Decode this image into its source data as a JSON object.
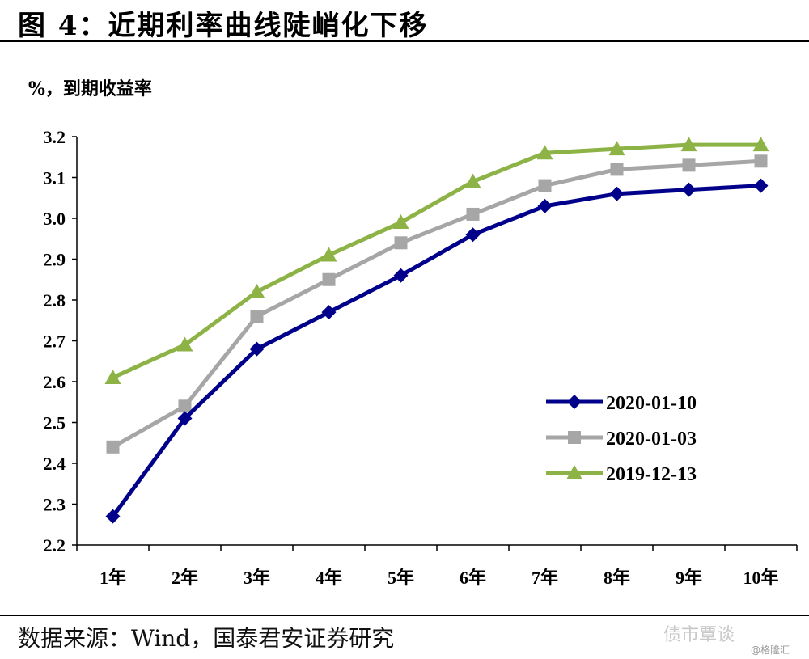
{
  "header": {
    "title": "图 4：近期利率曲线陡峭化下移"
  },
  "footer": {
    "source": "数据来源：Wind，国泰君安证券研究",
    "watermark": "债市覃谈",
    "watermark_sub": "@格隆汇"
  },
  "chart_data": {
    "type": "line",
    "title": "图 4：近期利率曲线陡峭化下移",
    "ylabel": "%，到期收益率",
    "xlabel": "",
    "categories": [
      "1年",
      "2年",
      "3年",
      "4年",
      "5年",
      "6年",
      "7年",
      "8年",
      "9年",
      "10年"
    ],
    "ylim": [
      2.2,
      3.2
    ],
    "yticks": [
      "2.2",
      "2.3",
      "2.4",
      "2.5",
      "2.6",
      "2.7",
      "2.8",
      "2.9",
      "3.0",
      "3.1",
      "3.2"
    ],
    "grid": false,
    "legend_position": "lower-right",
    "series": [
      {
        "name": "2020-01-10",
        "color": "#00008b",
        "marker": "diamond",
        "values": [
          2.27,
          2.51,
          2.68,
          2.77,
          2.86,
          2.96,
          3.03,
          3.06,
          3.07,
          3.08
        ]
      },
      {
        "name": "2020-01-03",
        "color": "#a6a6a6",
        "marker": "square",
        "values": [
          2.44,
          2.54,
          2.76,
          2.85,
          2.94,
          3.01,
          3.08,
          3.12,
          3.13,
          3.14
        ]
      },
      {
        "name": "2019-12-13",
        "color": "#8db347",
        "marker": "triangle",
        "values": [
          2.61,
          2.69,
          2.82,
          2.91,
          2.99,
          3.09,
          3.16,
          3.17,
          3.18,
          3.18
        ]
      }
    ]
  }
}
